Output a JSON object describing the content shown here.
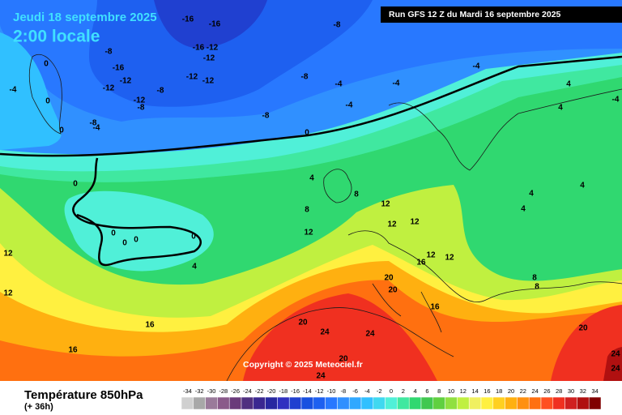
{
  "header": {
    "date": "Jeudi 18 septembre 2025",
    "time": "2:00 locale",
    "run": "Run GFS 12 Z du Mardi 16 septembre 2025",
    "copyright": "Copyright © 2025 Meteociel.fr"
  },
  "legend": {
    "title": "Température 850hPa",
    "lead": "(+ 36h)",
    "scale": [
      {
        "value": -34,
        "color": "#d0d0d0"
      },
      {
        "value": -32,
        "color": "#a8a8a8"
      },
      {
        "value": -30,
        "color": "#9a7a9a"
      },
      {
        "value": -28,
        "color": "#8a5a8a"
      },
      {
        "value": -26,
        "color": "#6a3a7a"
      },
      {
        "value": -24,
        "color": "#503080"
      },
      {
        "value": -22,
        "color": "#3a2890"
      },
      {
        "value": -20,
        "color": "#2828a0"
      },
      {
        "value": -18,
        "color": "#3030c0"
      },
      {
        "value": -16,
        "color": "#2040d0"
      },
      {
        "value": -14,
        "color": "#1850e0"
      },
      {
        "value": -12,
        "color": "#1e60f0"
      },
      {
        "value": -10,
        "color": "#2878ff"
      },
      {
        "value": -8,
        "color": "#3090ff"
      },
      {
        "value": -6,
        "color": "#30a8ff"
      },
      {
        "value": -4,
        "color": "#30c0ff"
      },
      {
        "value": -2,
        "color": "#40d8f0"
      },
      {
        "value": 0,
        "color": "#50f0d8"
      },
      {
        "value": 2,
        "color": "#40e8a0"
      },
      {
        "value": 4,
        "color": "#30d870"
      },
      {
        "value": 6,
        "color": "#40c850"
      },
      {
        "value": 8,
        "color": "#60d040"
      },
      {
        "value": 10,
        "color": "#90e040"
      },
      {
        "value": 12,
        "color": "#c0f040"
      },
      {
        "value": 14,
        "color": "#f0f060"
      },
      {
        "value": 16,
        "color": "#fff040"
      },
      {
        "value": 18,
        "color": "#ffd020"
      },
      {
        "value": 20,
        "color": "#ffb010"
      },
      {
        "value": 22,
        "color": "#ff9010"
      },
      {
        "value": 24,
        "color": "#ff7010"
      },
      {
        "value": 26,
        "color": "#ff5020"
      },
      {
        "value": 28,
        "color": "#f03020"
      },
      {
        "value": 30,
        "color": "#d02020"
      },
      {
        "value": 32,
        "color": "#b01010"
      },
      {
        "value": 34,
        "color": "#800000"
      }
    ]
  },
  "contour_labels": [
    "-16",
    "-16",
    "-8",
    "-8",
    "-16",
    "-16",
    "-12",
    "-12",
    "-12",
    "-12",
    "-12",
    "-12",
    "-8",
    "-12",
    "-8",
    "-8",
    "-4",
    "-4",
    "-4",
    "-8",
    "-4",
    "0",
    "0",
    "-8",
    "-4",
    "0",
    "0",
    "-4",
    "4",
    "4",
    "-4",
    "0",
    "4",
    "8",
    "12",
    "8",
    "12",
    "12",
    "4",
    "4",
    "4",
    "0",
    "0",
    "0",
    "0",
    "4",
    "12",
    "12",
    "12",
    "12",
    "12",
    "16",
    "8",
    "8",
    "20",
    "20",
    "16",
    "16",
    "20",
    "24",
    "24",
    "20",
    "16",
    "24",
    "20",
    "24",
    "24"
  ]
}
